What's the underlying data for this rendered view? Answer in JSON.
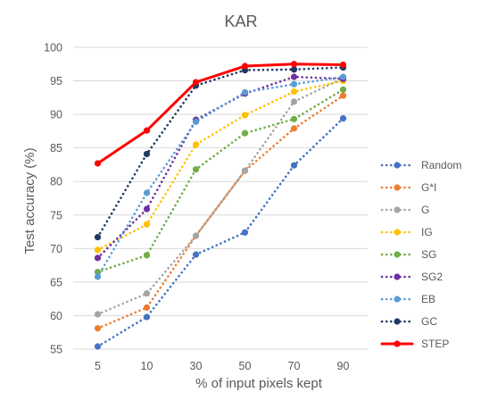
{
  "chart_data": {
    "type": "line",
    "title": "KAR",
    "xlabel": "% of input pixels kept",
    "ylabel": "Test accuracy (%)",
    "categories": [
      "5",
      "10",
      "30",
      "50",
      "70",
      "90"
    ],
    "ylim": [
      55,
      100
    ],
    "yticks": [
      55,
      60,
      65,
      70,
      75,
      80,
      85,
      90,
      95,
      100
    ],
    "grid": true,
    "legend_position": "right",
    "series": [
      {
        "name": "Random",
        "color": "#4472C4",
        "style": "dotted",
        "values": [
          55.4,
          59.8,
          69.1,
          72.4,
          82.4,
          89.4
        ]
      },
      {
        "name": "G*I",
        "color": "#ED7D31",
        "style": "dotted",
        "values": [
          58.1,
          61.2,
          71.9,
          81.6,
          87.9,
          92.8
        ]
      },
      {
        "name": "G",
        "color": "#A5A5A5",
        "style": "dotted",
        "values": [
          60.2,
          63.3,
          71.9,
          81.6,
          91.9,
          95.4
        ]
      },
      {
        "name": "IG",
        "color": "#FFC000",
        "style": "dotted",
        "values": [
          69.8,
          73.6,
          85.5,
          89.9,
          93.4,
          95.0
        ]
      },
      {
        "name": "SG",
        "color": "#70AD47",
        "style": "dotted",
        "values": [
          66.5,
          69.0,
          81.8,
          87.2,
          89.3,
          93.7
        ]
      },
      {
        "name": "SG2",
        "color": "#7030A0",
        "style": "dotted",
        "values": [
          68.6,
          75.9,
          89.2,
          93.1,
          95.6,
          95.3
        ]
      },
      {
        "name": "EB",
        "color": "#5B9BD5",
        "style": "dotted",
        "values": [
          65.8,
          78.3,
          88.9,
          93.3,
          94.5,
          95.6
        ]
      },
      {
        "name": "GC",
        "color": "#203864",
        "style": "dotted",
        "values": [
          71.7,
          84.1,
          94.3,
          96.6,
          96.7,
          97.0
        ]
      },
      {
        "name": "STEP",
        "color": "#FF0000",
        "style": "solid",
        "values": [
          82.7,
          87.6,
          94.8,
          97.2,
          97.5,
          97.4
        ]
      }
    ]
  }
}
